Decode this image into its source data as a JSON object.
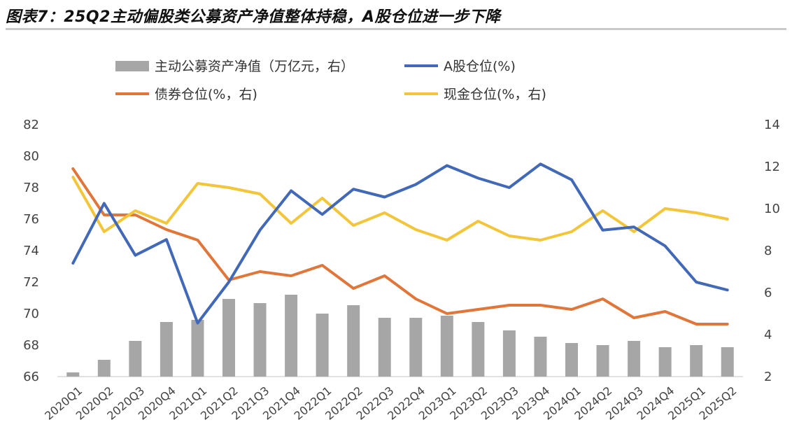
{
  "title": "图表7：25Q2主动偏股类公募资产净值整体持稳，A股仓位进一步下降",
  "colors": {
    "bars": "#a6a6a6",
    "a_share": "#4169b8",
    "bond": "#e0763a",
    "cash": "#f2c53a",
    "axis": "#d9d9d9"
  },
  "legend": [
    {
      "key": "nav",
      "label": "主动公募资产净值（万亿元，右）",
      "kind": "bar"
    },
    {
      "key": "a_share",
      "label": "A股仓位(%)",
      "kind": "line"
    },
    {
      "key": "bond",
      "label": "债券仓位(%，右)",
      "kind": "line"
    },
    {
      "key": "cash",
      "label": "现金仓位(%，右)",
      "kind": "line"
    }
  ],
  "chart_data": {
    "type": "bar+line",
    "categories": [
      "2020Q1",
      "2020Q2",
      "2020Q3",
      "2020Q4",
      "2021Q1",
      "2021Q2",
      "2021Q3",
      "2021Q4",
      "2022Q1",
      "2022Q2",
      "2022Q3",
      "2022Q4",
      "2023Q1",
      "2023Q2",
      "2023Q3",
      "2023Q4",
      "2024Q1",
      "2024Q2",
      "2024Q3",
      "2024Q4",
      "2025Q1",
      "2025Q2"
    ],
    "left_axis": {
      "min": 66,
      "max": 82,
      "ticks": [
        66,
        68,
        70,
        72,
        74,
        76,
        78,
        80,
        82
      ]
    },
    "right_axis": {
      "min": 2,
      "max": 14,
      "ticks": [
        2,
        4,
        6,
        8,
        10,
        12,
        14
      ]
    },
    "series": [
      {
        "name": "主动公募资产净值（万亿元，右）",
        "type": "bar",
        "axis": "right",
        "values": [
          2.2,
          2.8,
          3.7,
          4.6,
          4.7,
          5.7,
          5.5,
          5.9,
          5.0,
          5.4,
          4.8,
          4.8,
          4.9,
          4.6,
          4.2,
          3.9,
          3.6,
          3.5,
          3.7,
          3.4,
          3.5,
          3.4
        ]
      },
      {
        "name": "A股仓位(%)",
        "type": "line",
        "axis": "left",
        "values": [
          73.2,
          77.0,
          73.7,
          74.7,
          69.4,
          72.0,
          75.3,
          77.8,
          76.3,
          77.9,
          77.4,
          78.2,
          79.4,
          78.6,
          78.0,
          79.5,
          78.5,
          75.3,
          75.5,
          74.3,
          72.0,
          71.5
        ]
      },
      {
        "name": "债券仓位(%，右)",
        "type": "line",
        "axis": "right",
        "values": [
          11.9,
          9.7,
          9.7,
          9.0,
          8.5,
          6.6,
          7.0,
          6.8,
          7.3,
          6.2,
          6.8,
          5.7,
          5.0,
          5.2,
          5.4,
          5.4,
          5.2,
          5.7,
          4.8,
          5.1,
          4.5,
          4.5
        ]
      },
      {
        "name": "现金仓位(%，右)",
        "type": "line",
        "axis": "right",
        "values": [
          11.5,
          8.9,
          9.9,
          9.3,
          11.2,
          11.0,
          10.7,
          9.3,
          10.5,
          9.2,
          9.8,
          9.0,
          8.5,
          9.4,
          8.7,
          8.5,
          8.9,
          9.9,
          8.9,
          10.0,
          9.8,
          9.5
        ]
      }
    ]
  }
}
